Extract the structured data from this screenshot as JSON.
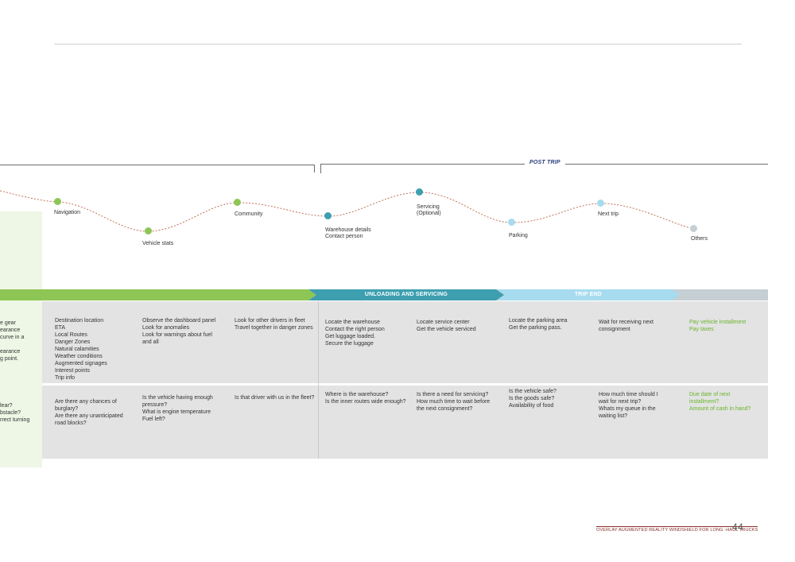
{
  "phases": {
    "post_trip": "POST TRIP"
  },
  "bands": {
    "unloading": "UNLOADING AND SERVICING",
    "trip_end": "TRIP END"
  },
  "journey": [
    {
      "label_lines": [
        "Navigation"
      ],
      "color": "#8ec655"
    },
    {
      "label_lines": [
        "Vehicle stats"
      ],
      "color": "#8ec655"
    },
    {
      "label_lines": [
        "Community"
      ],
      "color": "#8ec655"
    },
    {
      "label_lines": [
        "Warehouse details",
        "Contact person"
      ],
      "color": "#3d9fb0"
    },
    {
      "label_lines": [
        "Servicing",
        "(Optional)"
      ],
      "color": "#3d9fb0"
    },
    {
      "label_lines": [
        "Parking"
      ],
      "color": "#a7dbef"
    },
    {
      "label_lines": [
        "Next trip"
      ],
      "color": "#a7dbef"
    },
    {
      "label_lines": [
        "Others"
      ],
      "color": "#c6cfd3"
    }
  ],
  "side_fragments": {
    "row1": [
      "e gear",
      "earance",
      "curve in a",
      "",
      "earance",
      "g point."
    ],
    "row2": [
      "lear?",
      "bstacle?",
      "rrect turning"
    ]
  },
  "actions": [
    [
      "Destination location",
      "ETA",
      "Local Routes",
      "Danger Zones",
      "Natural calamities",
      "Weather conditions",
      "Augmented signages",
      "Interest points",
      "Trip info"
    ],
    [
      "Observe the dashboard panel",
      "Look for anomalies",
      "Look for warnings about fuel",
      "and all"
    ],
    [
      "Look for other drivers in fleet",
      "Travel together in danger zones"
    ],
    [
      "Locate the warehouse",
      "Contact the right person",
      "Get luggage loaded.",
      "Secure the luggage"
    ],
    [
      "Locate service center",
      "Get the vehicle serviced"
    ],
    [
      "Locate the parking area",
      "Get the parking pass."
    ],
    [
      "Wait for receiving next",
      "consignment"
    ],
    [
      "Pay vehicle installment",
      "Pay taxes"
    ]
  ],
  "questions": [
    [
      "Are there any chances of",
      "burglary?",
      "Are there any unanticipated",
      "road blocks?"
    ],
    [
      "Is the vehicle having enough",
      "pressure?",
      "What is engine temperature",
      "Fuel left?"
    ],
    [
      "Is that driver with us in the fleet?"
    ],
    [
      "Where is the warehouse?",
      "Is the inner routes wide enough?"
    ],
    [
      "Is there a need for servicing?",
      "How much time to wait before",
      "the next consignment?"
    ],
    [
      "Is the vehicle safe?",
      "Is the goods safe?",
      "Availability of food"
    ],
    [
      "How much time should I",
      "wait for next trip?",
      "Whats my queue in the",
      "waiting list?"
    ],
    [
      "Due date of next",
      "installment?",
      "Amount of cash in hand?"
    ]
  ],
  "colors": {
    "accent_green": "#8ec655",
    "accent_teal": "#3d9fb0",
    "accent_light_blue": "#a7dbef",
    "highlight_text_green": "#6ab42a"
  },
  "footer": {
    "title": "OVERLAY AUGMENTED REALITY WINDSHIELD FOR LONG -HAUL TRUCKS",
    "page": "44"
  }
}
